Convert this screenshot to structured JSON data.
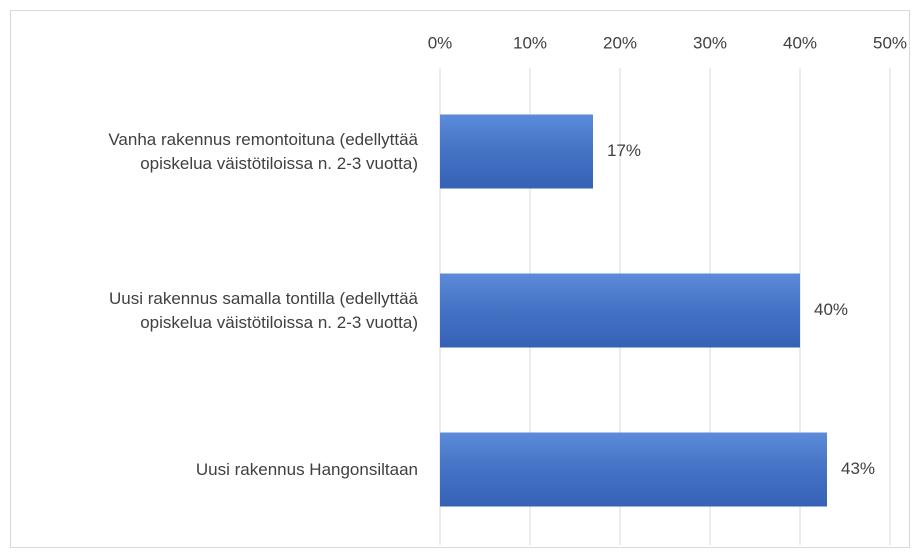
{
  "chart_data": {
    "type": "bar",
    "orientation": "horizontal",
    "categories": [
      "Vanha rakennus remontoituna (edellyttää\nopiskelua väistötiloissa n. 2-3 vuotta)",
      "Uusi rakennus samalla tontilla (edellyttää\nopiskelua väistötiloissa n. 2-3 vuotta)",
      "Uusi rakennus Hangonsiltaan"
    ],
    "values": [
      17,
      40,
      43
    ],
    "value_labels": [
      "17%",
      "40%",
      "43%"
    ],
    "color": "#4472c4",
    "xlim": [
      0,
      50
    ],
    "xticks": [
      {
        "value": 0,
        "label": "0%"
      },
      {
        "value": 10,
        "label": "10%"
      },
      {
        "value": 20,
        "label": "20%"
      },
      {
        "value": 30,
        "label": "30%"
      },
      {
        "value": 40,
        "label": "40%"
      },
      {
        "value": 50,
        "label": "50%"
      }
    ],
    "grid": true
  }
}
